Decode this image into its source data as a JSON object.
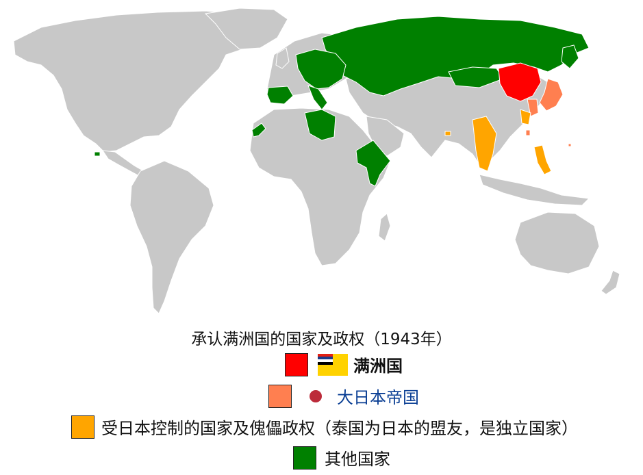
{
  "legend": {
    "title": "承认满洲国的国家及政权（1943年）",
    "items": [
      {
        "label": "满洲国",
        "color": "#ff0000"
      },
      {
        "label": "大日本帝国",
        "color": "#ff7f50"
      },
      {
        "label": "受日本控制的国家及傀儡政权（泰国为日本的盟友，是独立国家）",
        "color": "#ffa500"
      },
      {
        "label": "其他国家",
        "color": "#008000"
      }
    ]
  },
  "colors": {
    "land": "#c8c8c8",
    "border": "#ffffff",
    "manchukuo": "#ff0000",
    "japan": "#ff7f50",
    "controlled": "#ffa500",
    "recognizing": "#008000",
    "japan_dot": "#bc2b3a"
  },
  "icons": {
    "manchukuo_flag": "manchukuo-flag-icon",
    "japan_flag": "japan-flag-dot-icon"
  }
}
